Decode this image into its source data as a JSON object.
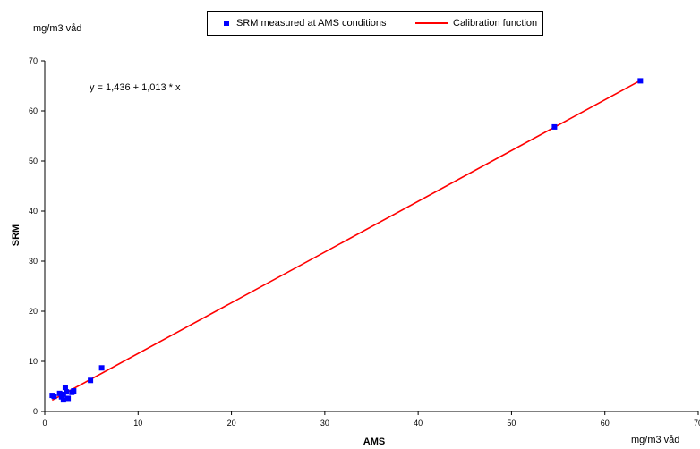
{
  "chart_data": {
    "type": "scatter",
    "title": "",
    "xlabel": "AMS",
    "ylabel": "SRM",
    "x_unit": "mg/m3 våd",
    "y_unit": "mg/m3 våd",
    "xlim": [
      0,
      70
    ],
    "ylim": [
      0,
      70
    ],
    "x_ticks": [
      0,
      10,
      20,
      30,
      40,
      50,
      60,
      70
    ],
    "y_ticks": [
      0,
      10,
      20,
      30,
      40,
      50,
      60,
      70
    ],
    "grid": false,
    "legend_position": "top-center",
    "equation": "y = 1,436 + 1,013 * x",
    "series": [
      {
        "name": "SRM measured at AMS conditions",
        "kind": "scatter",
        "color": "#0000ff",
        "points": [
          [
            0.8,
            3.2
          ],
          [
            1.0,
            3.0
          ],
          [
            1.6,
            3.6
          ],
          [
            1.8,
            2.9
          ],
          [
            2.0,
            2.3
          ],
          [
            2.0,
            3.4
          ],
          [
            2.2,
            4.8
          ],
          [
            2.3,
            3.9
          ],
          [
            2.5,
            2.6
          ],
          [
            2.9,
            3.8
          ],
          [
            3.1,
            4.1
          ],
          [
            4.9,
            6.2
          ],
          [
            6.1,
            8.7
          ],
          [
            54.6,
            56.8
          ],
          [
            63.8,
            66.0
          ]
        ]
      },
      {
        "name": "Calibration function",
        "kind": "line",
        "color": "#ff0000",
        "intercept": 1.436,
        "slope": 1.013,
        "x_range": [
          0.8,
          63.8
        ]
      }
    ]
  }
}
